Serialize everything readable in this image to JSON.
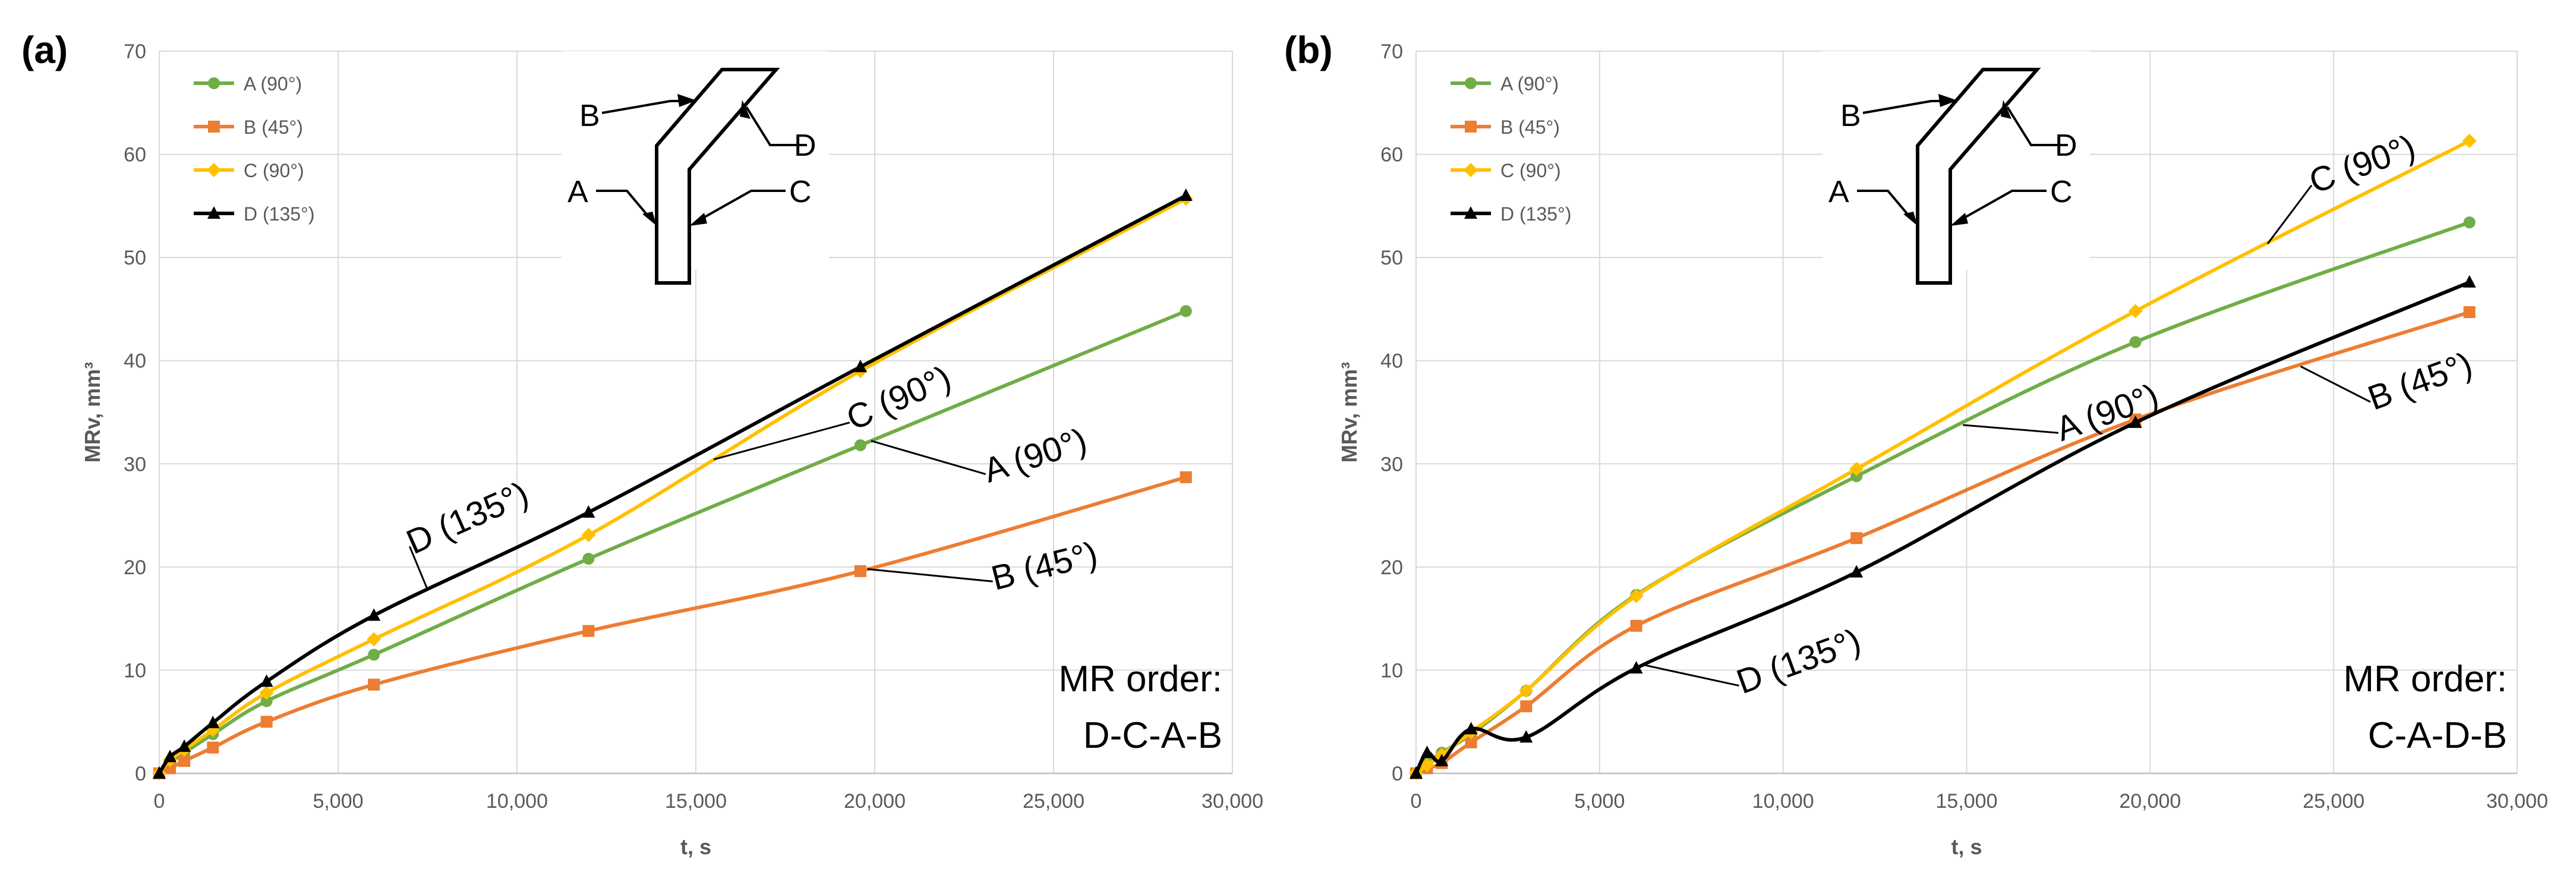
{
  "colors": {
    "A": "#70ad47",
    "B": "#ed7d31",
    "C": "#ffc000",
    "D": "#000000",
    "grid": "#d9d9d9",
    "axis_text": "#595959"
  },
  "chart_data": [
    {
      "panel_label": "(a)",
      "type": "line",
      "xlabel": "t, s",
      "ylabel": "MRv, mm³",
      "xlim": [
        0,
        30000
      ],
      "ylim": [
        0,
        70
      ],
      "x_ticks": [
        "0",
        "5,000",
        "10,000",
        "15,000",
        "20,000",
        "25,000",
        "30,000"
      ],
      "y_ticks": [
        "0",
        "10",
        "20",
        "30",
        "40",
        "50",
        "60",
        "70"
      ],
      "grid": true,
      "legend_position": "top-left",
      "series": [
        {
          "key": "A",
          "name": "A (90°)",
          "marker": "circle",
          "x": [
            0,
            300,
            700,
            1500,
            3000,
            6000,
            12000,
            19600,
            28700
          ],
          "y": [
            0,
            1.0,
            2.0,
            3.8,
            7.0,
            11.5,
            20.8,
            31.8,
            44.8
          ]
        },
        {
          "key": "B",
          "name": "B (45°)",
          "marker": "square",
          "x": [
            0,
            300,
            700,
            1500,
            3000,
            6000,
            12000,
            19600,
            28700
          ],
          "y": [
            0,
            0.5,
            1.2,
            2.5,
            5.0,
            8.6,
            13.8,
            19.6,
            28.7
          ]
        },
        {
          "key": "C",
          "name": "C (90°)",
          "marker": "diamond",
          "x": [
            0,
            300,
            700,
            1500,
            3000,
            6000,
            12000,
            19600,
            28700
          ],
          "y": [
            0,
            1.3,
            2.3,
            4.2,
            7.8,
            13.0,
            23.1,
            39.0,
            55.7
          ]
        },
        {
          "key": "D",
          "name": "D (135°)",
          "marker": "triangle",
          "x": [
            0,
            300,
            700,
            1500,
            3000,
            6000,
            12000,
            19600,
            28700
          ],
          "y": [
            0,
            1.6,
            2.6,
            4.9,
            8.9,
            15.3,
            25.3,
            39.4,
            56.0
          ]
        }
      ],
      "annotations": [
        {
          "series": "D",
          "text": "D (135°)",
          "at_x": 7500,
          "text_x": 7000,
          "text_y": 22,
          "angle": -24
        },
        {
          "series": "C",
          "text": "C (90°)",
          "at_x": 15500,
          "text_x": 19300,
          "text_y": 34,
          "angle": -24
        },
        {
          "series": "A",
          "text": "A (90°)",
          "at_x": 19900,
          "text_x": 23100,
          "text_y": 29,
          "angle": -18
        },
        {
          "series": "B",
          "text": "B (45°)",
          "at_x": 19800,
          "text_x": 23300,
          "text_y": 18.6,
          "angle": -14
        }
      ],
      "note_lines": [
        "MR order:",
        "D-C-A-B"
      ],
      "diagram_labels": [
        "A",
        "B",
        "C",
        "D"
      ]
    },
    {
      "panel_label": "(b)",
      "type": "line",
      "xlabel": "t, s",
      "ylabel": "MRv, mm³",
      "xlim": [
        0,
        30000
      ],
      "ylim": [
        0,
        70
      ],
      "x_ticks": [
        "0",
        "5,000",
        "10,000",
        "15,000",
        "20,000",
        "25,000",
        "30,000"
      ],
      "y_ticks": [
        "0",
        "10",
        "20",
        "30",
        "40",
        "50",
        "60",
        "70"
      ],
      "grid": true,
      "legend_position": "top-left",
      "series": [
        {
          "key": "A",
          "name": "A (90°)",
          "marker": "circle",
          "x": [
            0,
            300,
            700,
            1500,
            3000,
            6000,
            12000,
            19600,
            28700
          ],
          "y": [
            0,
            1.0,
            2.0,
            3.8,
            8.0,
            17.3,
            28.8,
            41.8,
            53.4
          ]
        },
        {
          "key": "B",
          "name": "B (45°)",
          "marker": "square",
          "x": [
            0,
            300,
            700,
            1500,
            3000,
            6000,
            12000,
            19600,
            28700
          ],
          "y": [
            0,
            0.5,
            1.0,
            3.0,
            6.5,
            14.3,
            22.8,
            34.3,
            44.7
          ]
        },
        {
          "key": "C",
          "name": "C (90°)",
          "marker": "diamond",
          "x": [
            0,
            300,
            700,
            1500,
            3000,
            6000,
            12000,
            19600,
            28700
          ],
          "y": [
            0,
            0.8,
            1.8,
            4.0,
            8.0,
            17.2,
            29.5,
            44.8,
            61.3
          ]
        },
        {
          "key": "D",
          "name": "D (135°)",
          "marker": "triangle",
          "x": [
            0,
            300,
            700,
            1500,
            3000,
            6000,
            12000,
            19600,
            28700
          ],
          "y": [
            0,
            2.0,
            1.2,
            4.3,
            3.5,
            10.2,
            19.5,
            34.0,
            47.6
          ]
        }
      ],
      "annotations": [
        {
          "series": "C",
          "text": "C (90°)",
          "at_x": 23200,
          "text_x": 24400,
          "text_y": 57,
          "angle": -20
        },
        {
          "series": "A",
          "text": "A (90°)",
          "at_x": 14900,
          "text_x": 17500,
          "text_y": 33,
          "angle": -20
        },
        {
          "series": "B",
          "text": "B (45°)",
          "at_x": 24100,
          "text_x": 26000,
          "text_y": 36,
          "angle": -20
        },
        {
          "series": "D",
          "text": "D (135°)",
          "at_x": 6200,
          "text_x": 8800,
          "text_y": 8.5,
          "angle": -20
        }
      ],
      "note_lines": [
        "MR order:",
        "C-A-D-B"
      ],
      "diagram_labels": [
        "A",
        "B",
        "C",
        "D"
      ]
    }
  ]
}
